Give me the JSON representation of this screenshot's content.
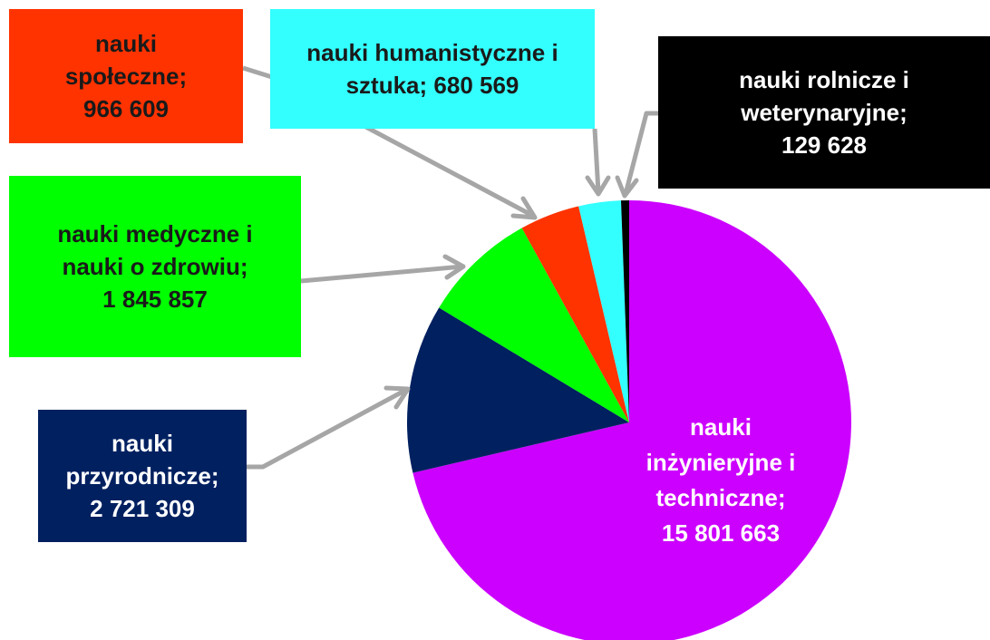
{
  "chart_data": {
    "type": "pie",
    "categories": [
      "nauki inżynieryjne i techniczne;",
      "nauki przyrodnicze;",
      "nauki medyczne i nauki o zdrowiu;",
      "nauki społeczne;",
      "nauki humanistyczne i sztuka;",
      "nauki rolnicze i weterynaryjne;"
    ],
    "values": [
      15801663,
      2721309,
      1845857,
      966609,
      680569,
      129628
    ],
    "value_labels": [
      "15 801 663",
      "2 721 309",
      "1 845 857",
      "966 609",
      "680 569",
      "129 628"
    ],
    "colors": [
      "#cc00ff",
      "#002060",
      "#00ff00",
      "#ff3300",
      "#33ffff",
      "#000000"
    ]
  }
}
